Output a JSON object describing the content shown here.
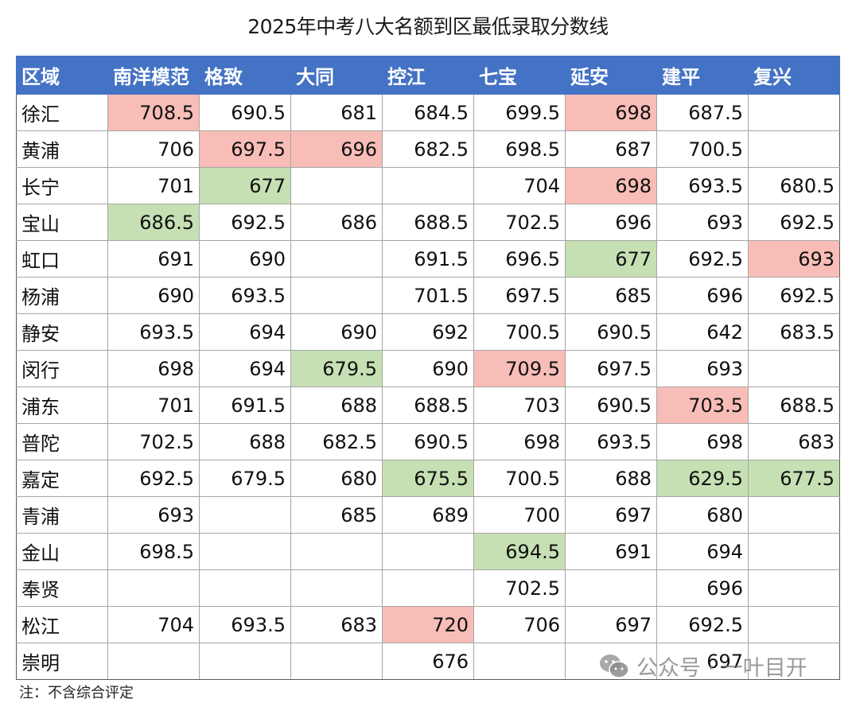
{
  "title": "2025年中考八大名额到区最低录取分数线",
  "table": {
    "headers": [
      "区域",
      "南洋模范",
      "格致",
      "大同",
      "控江",
      "七宝",
      "延安",
      "建平",
      "复兴"
    ],
    "rows": [
      {
        "region": "徐汇",
        "cells": [
          {
            "v": "708.5",
            "hl": "red"
          },
          {
            "v": "690.5"
          },
          {
            "v": "681"
          },
          {
            "v": "684.5"
          },
          {
            "v": "699.5"
          },
          {
            "v": "698",
            "hl": "red"
          },
          {
            "v": "687.5"
          },
          {
            "v": ""
          }
        ]
      },
      {
        "region": "黄浦",
        "cells": [
          {
            "v": "706"
          },
          {
            "v": "697.5",
            "hl": "red"
          },
          {
            "v": "696",
            "hl": "red"
          },
          {
            "v": "682.5"
          },
          {
            "v": "698.5"
          },
          {
            "v": "687"
          },
          {
            "v": "700.5"
          },
          {
            "v": ""
          }
        ]
      },
      {
        "region": "长宁",
        "cells": [
          {
            "v": "701"
          },
          {
            "v": "677",
            "hl": "green"
          },
          {
            "v": ""
          },
          {
            "v": ""
          },
          {
            "v": "704"
          },
          {
            "v": "698",
            "hl": "red"
          },
          {
            "v": "693.5"
          },
          {
            "v": "680.5"
          }
        ]
      },
      {
        "region": "宝山",
        "cells": [
          {
            "v": "686.5",
            "hl": "green"
          },
          {
            "v": "692.5"
          },
          {
            "v": "686"
          },
          {
            "v": "688.5"
          },
          {
            "v": "702.5"
          },
          {
            "v": "696"
          },
          {
            "v": "693"
          },
          {
            "v": "692.5"
          }
        ]
      },
      {
        "region": "虹口",
        "cells": [
          {
            "v": "691"
          },
          {
            "v": "690"
          },
          {
            "v": ""
          },
          {
            "v": "691.5"
          },
          {
            "v": "696.5"
          },
          {
            "v": "677",
            "hl": "green"
          },
          {
            "v": "692.5"
          },
          {
            "v": "693",
            "hl": "red"
          }
        ]
      },
      {
        "region": "杨浦",
        "cells": [
          {
            "v": "690"
          },
          {
            "v": "693.5"
          },
          {
            "v": ""
          },
          {
            "v": "701.5"
          },
          {
            "v": "697.5"
          },
          {
            "v": "685"
          },
          {
            "v": "696"
          },
          {
            "v": "692.5"
          }
        ]
      },
      {
        "region": "静安",
        "cells": [
          {
            "v": "693.5"
          },
          {
            "v": "694"
          },
          {
            "v": "690"
          },
          {
            "v": "692"
          },
          {
            "v": "700.5"
          },
          {
            "v": "690.5"
          },
          {
            "v": "642"
          },
          {
            "v": "683.5"
          }
        ]
      },
      {
        "region": "闵行",
        "cells": [
          {
            "v": "698"
          },
          {
            "v": "694"
          },
          {
            "v": "679.5",
            "hl": "green"
          },
          {
            "v": "690"
          },
          {
            "v": "709.5",
            "hl": "red"
          },
          {
            "v": "697.5"
          },
          {
            "v": "693"
          },
          {
            "v": ""
          }
        ]
      },
      {
        "region": "浦东",
        "cells": [
          {
            "v": "701"
          },
          {
            "v": "691.5"
          },
          {
            "v": "688"
          },
          {
            "v": "688.5"
          },
          {
            "v": "703"
          },
          {
            "v": "690.5"
          },
          {
            "v": "703.5",
            "hl": "red"
          },
          {
            "v": "688.5"
          }
        ]
      },
      {
        "region": "普陀",
        "cells": [
          {
            "v": "702.5"
          },
          {
            "v": "688"
          },
          {
            "v": "682.5"
          },
          {
            "v": "690.5"
          },
          {
            "v": "698"
          },
          {
            "v": "693.5"
          },
          {
            "v": "698"
          },
          {
            "v": "683"
          }
        ]
      },
      {
        "region": "嘉定",
        "cells": [
          {
            "v": "692.5"
          },
          {
            "v": "679.5"
          },
          {
            "v": "680"
          },
          {
            "v": "675.5",
            "hl": "green"
          },
          {
            "v": "700.5"
          },
          {
            "v": "688"
          },
          {
            "v": "629.5",
            "hl": "green"
          },
          {
            "v": "677.5",
            "hl": "green"
          }
        ]
      },
      {
        "region": "青浦",
        "cells": [
          {
            "v": "693"
          },
          {
            "v": ""
          },
          {
            "v": "685"
          },
          {
            "v": "689"
          },
          {
            "v": "700"
          },
          {
            "v": "697"
          },
          {
            "v": "680"
          },
          {
            "v": ""
          }
        ]
      },
      {
        "region": "金山",
        "cells": [
          {
            "v": "698.5"
          },
          {
            "v": ""
          },
          {
            "v": ""
          },
          {
            "v": ""
          },
          {
            "v": "694.5",
            "hl": "green"
          },
          {
            "v": "691"
          },
          {
            "v": "694"
          },
          {
            "v": ""
          }
        ]
      },
      {
        "region": "奉贤",
        "cells": [
          {
            "v": ""
          },
          {
            "v": ""
          },
          {
            "v": ""
          },
          {
            "v": ""
          },
          {
            "v": "702.5"
          },
          {
            "v": ""
          },
          {
            "v": "696"
          },
          {
            "v": ""
          }
        ]
      },
      {
        "region": "松江",
        "cells": [
          {
            "v": "704"
          },
          {
            "v": "693.5"
          },
          {
            "v": "683"
          },
          {
            "v": "720",
            "hl": "red"
          },
          {
            "v": "706"
          },
          {
            "v": "697"
          },
          {
            "v": "692.5"
          },
          {
            "v": ""
          }
        ]
      },
      {
        "region": "崇明",
        "cells": [
          {
            "v": ""
          },
          {
            "v": ""
          },
          {
            "v": ""
          },
          {
            "v": "676"
          },
          {
            "v": ""
          },
          {
            "v": ""
          },
          {
            "v": "697"
          },
          {
            "v": ""
          }
        ]
      }
    ]
  },
  "note": "注：不含综合评定",
  "watermark": {
    "icon": "wechat-icon",
    "text": "公众号 · 一叶目开"
  },
  "colors": {
    "header_bg": "#4472c4",
    "highlight_red": "#f8bdb7",
    "highlight_green": "#c6e0b4"
  }
}
